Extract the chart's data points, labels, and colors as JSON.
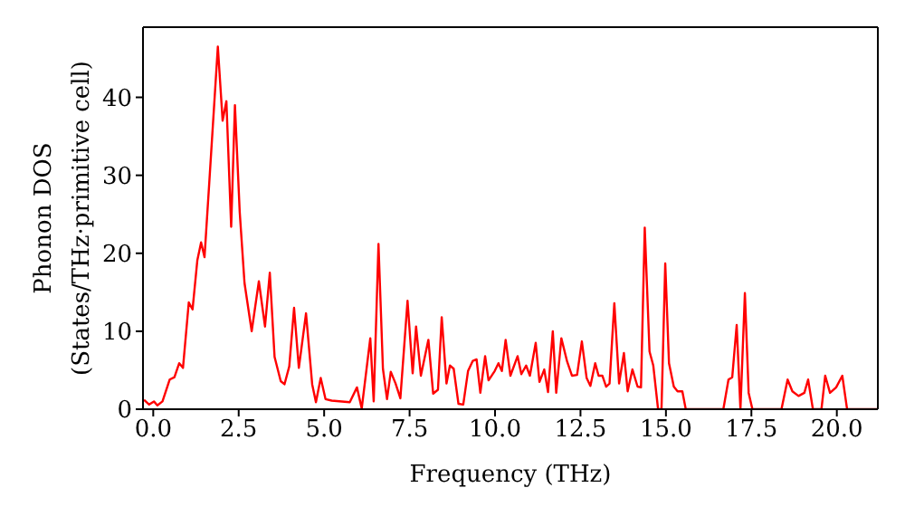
{
  "chart_data": {
    "type": "line",
    "xlabel": "Frequency (THz)",
    "ylabel": "Phonon DOS\n(States/THz·primitive cell)",
    "x": [
      -0.27,
      -0.12,
      0.02,
      0.12,
      0.27,
      0.48,
      0.62,
      0.76,
      0.87,
      1.04,
      1.15,
      1.29,
      1.4,
      1.5,
      1.64,
      1.89,
      2.03,
      2.14,
      2.28,
      2.39,
      2.53,
      2.67,
      2.88,
      3.09,
      3.27,
      3.41,
      3.55,
      3.73,
      3.84,
      3.98,
      4.12,
      4.26,
      4.47,
      4.65,
      4.76,
      4.9,
      5.04,
      5.22,
      5.75,
      5.96,
      6.1,
      6.35,
      6.45,
      6.59,
      6.72,
      6.84,
      6.95,
      7.09,
      7.23,
      7.44,
      7.59,
      7.69,
      7.83,
      8.05,
      8.19,
      8.33,
      8.44,
      8.58,
      8.68,
      8.79,
      8.93,
      9.07,
      9.21,
      9.35,
      9.46,
      9.57,
      9.71,
      9.81,
      9.99,
      10.1,
      10.2,
      10.31,
      10.45,
      10.66,
      10.77,
      10.91,
      11.02,
      11.19,
      11.3,
      11.44,
      11.55,
      11.69,
      11.79,
      11.94,
      12.11,
      12.25,
      12.4,
      12.54,
      12.68,
      12.79,
      12.93,
      13.03,
      13.14,
      13.25,
      13.35,
      13.49,
      13.63,
      13.77,
      13.88,
      14.02,
      14.17,
      14.27,
      14.38,
      14.52,
      14.63,
      14.77,
      14.87,
      14.98,
      15.09,
      15.23,
      15.34,
      15.48,
      15.58,
      16.68,
      16.83,
      16.94,
      17.07,
      17.18,
      17.31,
      17.42,
      17.53,
      18.38,
      18.56,
      18.7,
      18.88,
      19.05,
      19.16,
      19.3,
      19.55,
      19.66,
      19.8,
      19.98,
      20.16,
      20.3,
      21.2
    ],
    "series": [
      {
        "color": "#ff0000",
        "values": [
          1.2,
          0.6,
          1.0,
          0.5,
          1.0,
          3.8,
          4.1,
          5.9,
          5.3,
          13.7,
          12.8,
          19.1,
          21.4,
          19.5,
          29.1,
          46.5,
          37.0,
          39.5,
          23.4,
          39.0,
          25.3,
          16.2,
          10.0,
          16.4,
          10.6,
          17.5,
          6.7,
          3.6,
          3.2,
          5.5,
          13.0,
          5.3,
          12.3,
          3.2,
          0.9,
          4.0,
          1.3,
          1.1,
          0.9,
          2.8,
          0.1,
          9.1,
          1.0,
          21.2,
          5.2,
          1.3,
          4.8,
          3.3,
          1.4,
          13.9,
          4.6,
          10.6,
          4.3,
          8.9,
          2.0,
          2.5,
          11.8,
          3.3,
          5.6,
          5.2,
          0.7,
          0.6,
          4.9,
          6.2,
          6.4,
          2.1,
          6.8,
          3.7,
          4.9,
          5.9,
          4.9,
          8.9,
          4.3,
          6.8,
          4.5,
          5.6,
          4.3,
          8.5,
          3.5,
          5.1,
          2.2,
          10.0,
          2.1,
          9.1,
          6.1,
          4.3,
          4.4,
          8.7,
          4.0,
          3.0,
          5.9,
          4.3,
          4.3,
          2.9,
          3.3,
          13.6,
          3.3,
          7.2,
          2.3,
          5.1,
          2.9,
          2.8,
          23.3,
          7.4,
          5.6,
          0,
          0,
          18.7,
          5.9,
          2.9,
          2.3,
          2.3,
          0,
          0,
          3.8,
          4.1,
          10.8,
          0,
          14.9,
          2.1,
          0,
          0,
          3.8,
          2.3,
          1.7,
          2.1,
          3.8,
          0,
          0,
          4.3,
          2.1,
          2.8,
          4.3,
          0,
          0
        ]
      }
    ],
    "xlim": [
      -0.3,
      21.2
    ],
    "xticks": [
      {
        "value": 0,
        "label": "0.0"
      },
      {
        "value": 2.5,
        "label": "2.5"
      },
      {
        "value": 5,
        "label": "5.0"
      },
      {
        "value": 7.5,
        "label": "7.5"
      },
      {
        "value": 10,
        "label": "10.0"
      },
      {
        "value": 12.5,
        "label": "12.5"
      },
      {
        "value": 15,
        "label": "15.0"
      },
      {
        "value": 17.5,
        "label": "17.5"
      },
      {
        "value": 20,
        "label": "20.0"
      }
    ],
    "ylim": [
      0,
      49
    ],
    "yticks": [
      0,
      10,
      20,
      30,
      40
    ],
    "grid": false,
    "legend": false,
    "marker": "none",
    "line_style": "solid"
  }
}
